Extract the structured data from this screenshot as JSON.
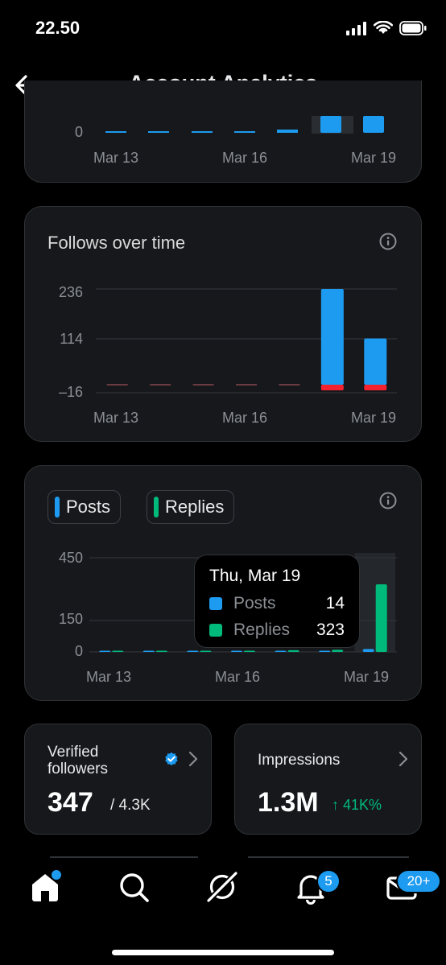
{
  "status": {
    "time": "22.50"
  },
  "header": {
    "title": "Account Analytics"
  },
  "top_chart": {
    "y_ticks": [
      "0"
    ],
    "x_ticks": [
      "Mar 13",
      "Mar 16",
      "Mar 19"
    ]
  },
  "follows_chart": {
    "title": "Follows over time",
    "y_ticks": [
      "236",
      "114",
      "–16"
    ],
    "x_ticks": [
      "Mar 13",
      "Mar 16",
      "Mar 19"
    ]
  },
  "posts_chart": {
    "legend": {
      "posts": "Posts",
      "replies": "Replies"
    },
    "y_ticks": [
      "450",
      "150",
      "0"
    ],
    "x_ticks": [
      "Mar 13",
      "Mar 16",
      "Mar 19"
    ],
    "tooltip": {
      "date": "Thu, Mar 19",
      "rows": [
        {
          "label": "Posts",
          "value": "14"
        },
        {
          "label": "Replies",
          "value": "323"
        }
      ]
    }
  },
  "chart_data": [
    {
      "type": "bar",
      "title": "Follows over time",
      "categories": [
        "Mar 13",
        "Mar 14",
        "Mar 15",
        "Mar 16",
        "Mar 17",
        "Mar 18",
        "Mar 19"
      ],
      "series": [
        {
          "values": [
            0,
            0,
            0,
            0,
            0,
            236,
            114
          ]
        },
        {
          "values": [
            0,
            0,
            0,
            0,
            0,
            -16,
            -16
          ]
        }
      ],
      "ylim": [
        -16,
        236
      ],
      "grid": true
    },
    {
      "type": "bar",
      "categories": [
        "Mar 13",
        "Mar 14",
        "Mar 15",
        "Mar 16",
        "Mar 17",
        "Mar 18",
        "Mar 19"
      ],
      "series": [
        {
          "name": "Posts",
          "values": [
            0,
            0,
            0,
            2,
            3,
            5,
            14
          ]
        },
        {
          "name": "Replies",
          "values": [
            0,
            0,
            0,
            5,
            8,
            10,
            323
          ]
        }
      ],
      "ylim": [
        0,
        450
      ],
      "grid": true
    }
  ],
  "stats": {
    "verified": {
      "title_line1": "Verified",
      "title_line2": "followers",
      "value": "347",
      "total": "/ 4.3K"
    },
    "impressions": {
      "title": "Impressions",
      "value": "1.3M",
      "change": "↑ 41K%"
    }
  },
  "nav": {
    "notifications_badge": "5",
    "messages_badge": "20+"
  },
  "colors": {
    "accent": "#1d9bf0",
    "green": "#00ba7c",
    "red": "#f4212e"
  },
  "icons": [
    "back-arrow-icon",
    "info-icon",
    "verified-badge-icon",
    "chevron-right-icon",
    "home-icon",
    "search-icon",
    "grok-icon",
    "bell-icon",
    "mail-icon"
  ]
}
